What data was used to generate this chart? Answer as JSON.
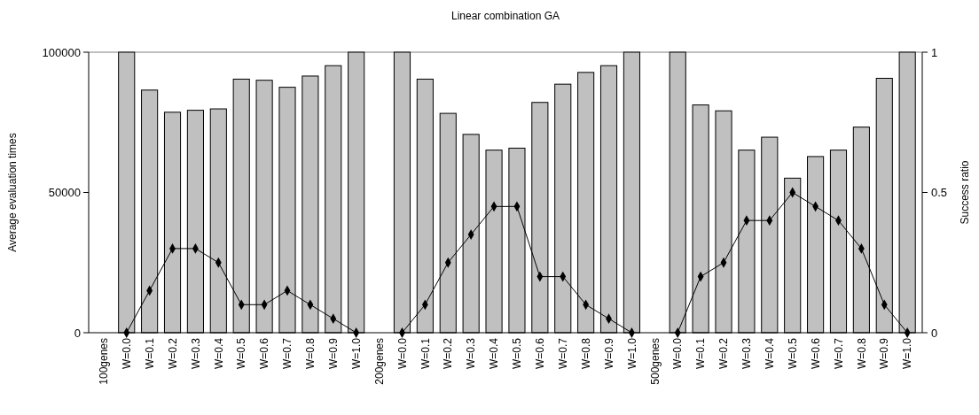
{
  "chart_data": {
    "type": "bar",
    "title": "Linear combination GA",
    "ylabel": "Average evaluation times",
    "y2label": "Success ratio",
    "categories": [
      "100genes",
      "W=0.0",
      "W=0.1",
      "W=0.2",
      "W=0.3",
      "W=0.4",
      "W=0.5",
      "W=0.6",
      "W=0.7",
      "W=0.8",
      "W=0.9",
      "W=1.0",
      "200genes",
      "W=0.0",
      "W=0.1",
      "W=0.2",
      "W=0.3",
      "W=0.4",
      "W=0.5",
      "W=0.6",
      "W=0.7",
      "W=0.8",
      "W=0.9",
      "W=1.0",
      "500genes",
      "W=0.0",
      "W=0.1",
      "W=0.2",
      "W=0.3",
      "W=0.4",
      "W=0.5",
      "W=0.6",
      "W=0.7",
      "W=0.8",
      "W=0.9",
      "W=1.0"
    ],
    "series": [
      {
        "color": "#c0c0c0",
        "values": [
          null,
          100000,
          86500,
          78600,
          79300,
          79800,
          90400,
          90000,
          87500,
          91500,
          95200,
          100000,
          null,
          100000,
          90400,
          78200,
          70700,
          65100,
          65800,
          82100,
          88600,
          92800,
          95200,
          100000,
          null,
          100000,
          81200,
          79100,
          65100,
          69700,
          55100,
          62800,
          65100,
          73300,
          90700,
          100000
        ]
      },
      {
        "type": "line",
        "axis": "y2",
        "color": "#000000",
        "marker": "diamond",
        "values": [
          null,
          0,
          0.15,
          0.3,
          0.3,
          0.25,
          0.1,
          0.1,
          0.15,
          0.1,
          0.05,
          0,
          null,
          0,
          0.1,
          0.25,
          0.35,
          0.45,
          0.45,
          0.2,
          0.2,
          0.1,
          0.05,
          0,
          null,
          0,
          0.2,
          0.25,
          0.4,
          0.4,
          0.5,
          0.45,
          0.4,
          0.3,
          0.1,
          0
        ]
      }
    ],
    "ylim": [
      0,
      100000
    ],
    "yticks": [
      0,
      50000,
      100000
    ],
    "y2lim": [
      0,
      1
    ],
    "y2ticks": [
      0,
      0.5,
      1
    ],
    "grid": false
  }
}
